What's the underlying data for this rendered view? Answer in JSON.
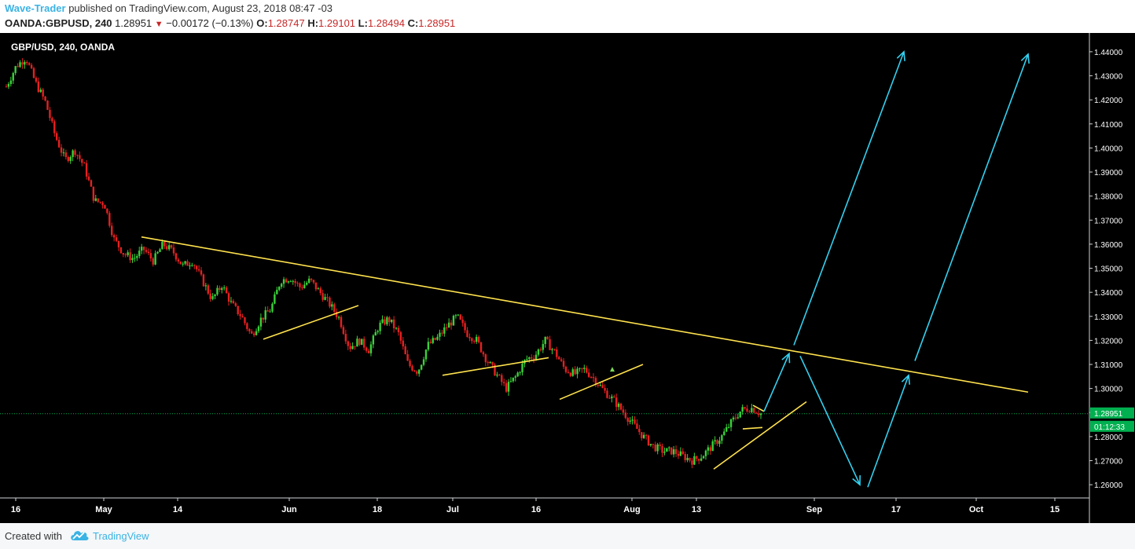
{
  "header": {
    "author": "Wave-Trader",
    "published": "published on TradingView.com, August 23, 2018 08:47 -03",
    "symbol": "OANDA:GBPUSD, 240",
    "last": "1.28951",
    "change": "−0.00172 (−0.13%)",
    "o_label": "O:",
    "o": "1.28747",
    "h_label": "H:",
    "h": "1.29101",
    "l_label": "L:",
    "l": "1.28494",
    "c_label": "C:",
    "c": "1.28951"
  },
  "chart_data": {
    "type": "candlestick",
    "title": "GBP/USD, 240, OANDA",
    "ylim": [
      1.2545,
      1.4478
    ],
    "y_ticks": [
      "1.26000",
      "1.27000",
      "1.28000",
      "1.29000",
      "1.30000",
      "1.31000",
      "1.32000",
      "1.33000",
      "1.34000",
      "1.35000",
      "1.36000",
      "1.37000",
      "1.38000",
      "1.39000",
      "1.40000",
      "1.41000",
      "1.42000",
      "1.43000",
      "1.44000"
    ],
    "x_ticks": [
      "16",
      "May",
      "14",
      "Jun",
      "18",
      "Jul",
      "16",
      "Aug",
      "13",
      "Sep",
      "17",
      "Oct",
      "15"
    ],
    "last_price_label": "1.28951",
    "countdown_label": "01:12:33",
    "price_path": [
      1.4255,
      1.434,
      1.4375,
      1.427,
      1.419,
      1.405,
      1.395,
      1.399,
      1.392,
      1.378,
      1.377,
      1.362,
      1.356,
      1.354,
      1.358,
      1.353,
      1.36,
      1.357,
      1.351,
      1.353,
      1.345,
      1.337,
      1.343,
      1.335,
      1.33,
      1.322,
      1.329,
      1.333,
      1.345,
      1.346,
      1.342,
      1.345,
      1.34,
      1.335,
      1.329,
      1.317,
      1.32,
      1.316,
      1.326,
      1.329,
      1.323,
      1.31,
      1.307,
      1.318,
      1.321,
      1.326,
      1.33,
      1.323,
      1.32,
      1.312,
      1.306,
      1.3,
      1.305,
      1.312,
      1.314,
      1.32,
      1.315,
      1.308,
      1.306,
      1.308,
      1.304,
      1.299,
      1.295,
      1.29,
      1.285,
      1.28,
      1.276,
      1.274,
      1.274,
      1.272,
      1.27,
      1.272,
      1.276,
      1.28,
      1.286,
      1.291,
      1.292,
      1.2895
    ],
    "annotations": {
      "trendline": "yellow descending resistance",
      "triangles": "yellow support lines",
      "arrows": "cyan projected waves"
    },
    "colors": {
      "up": "#3ad13a",
      "down": "#e62020",
      "trend": "#ffe24d",
      "arrow": "#33d1f0",
      "price_line": "#00b050"
    }
  },
  "footer": {
    "created": "Created with",
    "brand": "TradingView"
  }
}
